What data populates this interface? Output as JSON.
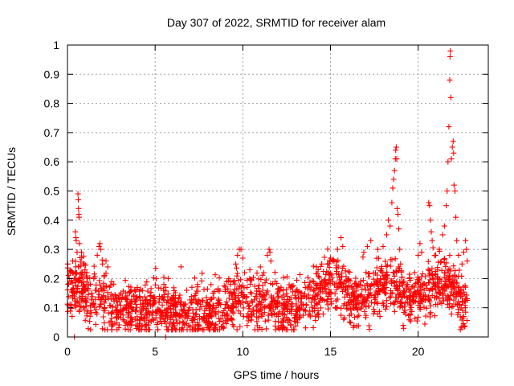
{
  "chart_data": {
    "type": "scatter",
    "title": "Day 307 of 2022, SRMTID for receiver alam",
    "xlabel": "GPS time / hours",
    "ylabel": "SRMTID / TECUs",
    "xlim": [
      0,
      24
    ],
    "ylim": [
      0,
      1
    ],
    "xticks": [
      0,
      5,
      10,
      15,
      20
    ],
    "xtick_labels": [
      "0",
      "5",
      "10",
      "15",
      "20"
    ],
    "yticks": [
      0,
      0.1,
      0.2,
      0.3,
      0.4,
      0.5,
      0.6,
      0.7,
      0.8,
      0.9,
      1
    ],
    "ytick_labels": [
      "0",
      "0.1",
      "0.2",
      "0.3",
      "0.4",
      "0.5",
      "0.6",
      "0.7",
      "0.8",
      "0.9",
      "1"
    ],
    "grid": true,
    "marker": "+",
    "series": [
      {
        "name": "SRMTID",
        "color": "#ff0000",
        "baseline": [
          [
            0.0,
            0.15
          ],
          [
            0.3,
            0.16
          ],
          [
            0.6,
            0.17
          ],
          [
            1.0,
            0.15
          ],
          [
            1.5,
            0.13
          ],
          [
            2.0,
            0.12
          ],
          [
            2.5,
            0.1
          ],
          [
            3.0,
            0.095
          ],
          [
            3.5,
            0.09
          ],
          [
            4.0,
            0.09
          ],
          [
            4.5,
            0.09
          ],
          [
            5.0,
            0.095
          ],
          [
            5.5,
            0.09
          ],
          [
            6.0,
            0.085
          ],
          [
            6.5,
            0.085
          ],
          [
            7.0,
            0.085
          ],
          [
            7.5,
            0.085
          ],
          [
            8.0,
            0.085
          ],
          [
            8.5,
            0.09
          ],
          [
            9.0,
            0.1
          ],
          [
            9.5,
            0.12
          ],
          [
            10.0,
            0.13
          ],
          [
            10.5,
            0.12
          ],
          [
            11.0,
            0.11
          ],
          [
            11.5,
            0.11
          ],
          [
            12.0,
            0.1
          ],
          [
            12.5,
            0.09
          ],
          [
            13.0,
            0.1
          ],
          [
            13.5,
            0.11
          ],
          [
            14.0,
            0.13
          ],
          [
            14.5,
            0.15
          ],
          [
            15.0,
            0.17
          ],
          [
            15.5,
            0.18
          ],
          [
            16.0,
            0.14
          ],
          [
            16.5,
            0.12
          ],
          [
            17.0,
            0.14
          ],
          [
            17.5,
            0.16
          ],
          [
            18.0,
            0.17
          ],
          [
            18.5,
            0.17
          ],
          [
            19.0,
            0.15
          ],
          [
            19.5,
            0.12
          ],
          [
            20.0,
            0.13
          ],
          [
            20.5,
            0.15
          ],
          [
            21.0,
            0.17
          ],
          [
            21.5,
            0.18
          ],
          [
            22.0,
            0.17
          ],
          [
            22.4,
            0.12
          ],
          [
            22.8,
            0.1
          ]
        ],
        "spread": 0.045,
        "n_random": 1900,
        "spikes": [
          [
            0.02,
            0.25
          ],
          [
            0.1,
            0.2
          ],
          [
            0.3,
            0.26
          ],
          [
            0.45,
            0.36
          ],
          [
            0.48,
            0.34
          ],
          [
            0.5,
            0.33
          ],
          [
            0.55,
            0.29
          ],
          [
            0.6,
            0.49
          ],
          [
            0.62,
            0.47
          ],
          [
            0.63,
            0.44
          ],
          [
            0.65,
            0.42
          ],
          [
            0.66,
            0.41
          ],
          [
            0.68,
            0.32
          ],
          [
            0.8,
            0.29
          ],
          [
            0.9,
            0.25
          ],
          [
            1.0,
            0.23
          ],
          [
            1.1,
            0.22
          ],
          [
            1.5,
            0.2
          ],
          [
            1.7,
            0.28
          ],
          [
            1.8,
            0.31
          ],
          [
            1.85,
            0.32
          ],
          [
            1.9,
            0.3
          ],
          [
            2.0,
            0.25
          ],
          [
            2.2,
            0.26
          ],
          [
            2.3,
            0.24
          ],
          [
            5.5,
            0.18
          ],
          [
            5.6,
            0.17
          ],
          [
            6.8,
            0.16
          ],
          [
            7.1,
            0.17
          ],
          [
            8.3,
            0.15
          ],
          [
            9.2,
            0.2
          ],
          [
            9.3,
            0.19
          ],
          [
            9.6,
            0.25
          ],
          [
            9.7,
            0.28
          ],
          [
            9.8,
            0.3
          ],
          [
            9.9,
            0.3
          ],
          [
            10.0,
            0.27
          ],
          [
            10.1,
            0.22
          ],
          [
            10.4,
            0.23
          ],
          [
            11.0,
            0.24
          ],
          [
            11.2,
            0.22
          ],
          [
            11.4,
            0.28
          ],
          [
            11.5,
            0.3
          ],
          [
            11.55,
            0.29
          ],
          [
            11.6,
            0.26
          ],
          [
            14.2,
            0.24
          ],
          [
            14.5,
            0.25
          ],
          [
            15.0,
            0.27
          ],
          [
            15.2,
            0.26
          ],
          [
            15.4,
            0.3
          ],
          [
            15.6,
            0.34
          ],
          [
            15.7,
            0.31
          ],
          [
            16.9,
            0.29
          ],
          [
            17.1,
            0.31
          ],
          [
            17.3,
            0.33
          ],
          [
            17.7,
            0.3
          ],
          [
            18.0,
            0.31
          ],
          [
            18.2,
            0.35
          ],
          [
            18.3,
            0.4
          ],
          [
            18.4,
            0.38
          ],
          [
            18.5,
            0.46
          ],
          [
            18.55,
            0.51
          ],
          [
            18.6,
            0.54
          ],
          [
            18.65,
            0.57
          ],
          [
            18.7,
            0.61
          ],
          [
            18.72,
            0.64
          ],
          [
            18.75,
            0.65
          ],
          [
            18.78,
            0.61
          ],
          [
            18.8,
            0.44
          ],
          [
            18.85,
            0.42
          ],
          [
            18.9,
            0.37
          ],
          [
            18.95,
            0.3
          ],
          [
            19.0,
            0.25
          ],
          [
            19.5,
            0.2
          ],
          [
            19.8,
            0.22
          ],
          [
            20.0,
            0.28
          ],
          [
            20.1,
            0.32
          ],
          [
            20.2,
            0.29
          ],
          [
            20.6,
            0.46
          ],
          [
            20.65,
            0.45
          ],
          [
            20.7,
            0.4
          ],
          [
            20.75,
            0.36
          ],
          [
            20.8,
            0.33
          ],
          [
            21.0,
            0.28
          ],
          [
            21.2,
            0.3
          ],
          [
            21.4,
            0.35
          ],
          [
            21.5,
            0.38
          ],
          [
            21.6,
            0.45
          ],
          [
            21.65,
            0.5
          ],
          [
            21.7,
            0.6
          ],
          [
            21.75,
            0.72
          ],
          [
            21.8,
            0.88
          ],
          [
            21.82,
            0.96
          ],
          [
            21.84,
            0.98
          ],
          [
            21.86,
            0.82
          ],
          [
            21.9,
            0.61
          ],
          [
            21.95,
            0.65
          ],
          [
            22.0,
            0.67
          ],
          [
            22.02,
            0.63
          ],
          [
            22.05,
            0.52
          ],
          [
            22.1,
            0.5
          ],
          [
            22.15,
            0.41
          ],
          [
            22.2,
            0.33
          ],
          [
            22.3,
            0.28
          ],
          [
            22.5,
            0.25
          ],
          [
            22.6,
            0.29
          ],
          [
            22.7,
            0.33
          ],
          [
            22.75,
            0.3
          ],
          [
            22.8,
            0.26
          ],
          [
            0.4,
            0.0
          ],
          [
            5.6,
            0.0
          ]
        ]
      }
    ]
  }
}
